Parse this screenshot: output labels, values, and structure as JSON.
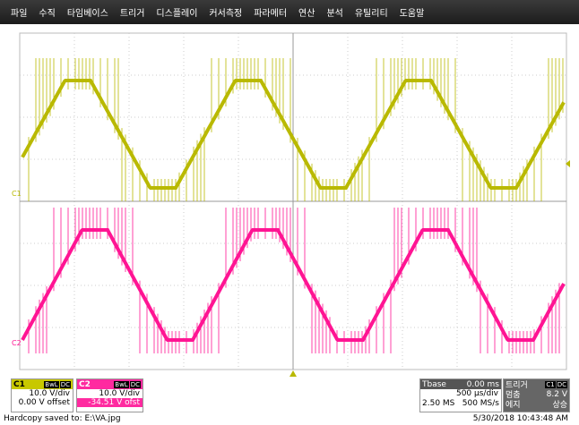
{
  "menu": [
    "파일",
    "수직",
    "타임베이스",
    "트리거",
    "디스플레이",
    "커서측정",
    "파라메터",
    "연산",
    "분석",
    "유틸리티",
    "도움말"
  ],
  "markers": {
    "c1": "C1",
    "c2": "C2"
  },
  "channels": [
    {
      "label": "C1",
      "bw": "BwL",
      "coupling": "DC",
      "scale": "10.0 V/div",
      "offset": "0.00 V offset"
    },
    {
      "label": "C2",
      "bw": "BwL",
      "coupling": "DC",
      "scale": "10.0 V/div",
      "offset": "-34.51 V ofst"
    }
  ],
  "timebase": {
    "label": "Tbase",
    "delay": "0.00 ms",
    "per_div": "500 µs/div",
    "samples": "2.50 MS",
    "rate": "500 MS/s"
  },
  "trigger": {
    "label": "트리거",
    "channel": "C1",
    "coupling": "DC",
    "mode": "멈춤",
    "level": "8.2 V",
    "type": "에지",
    "slope": "상승"
  },
  "status": {
    "message": "Hardcopy saved to: E:\\VA.jpg",
    "datetime": "5/30/2018 10:43:48 AM"
  }
}
